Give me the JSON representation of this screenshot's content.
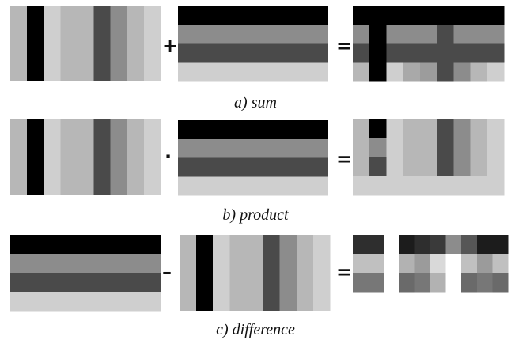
{
  "palette": {
    "white": "#ffffff",
    "black": "#000000",
    "dark_gray": "#4a4a4a",
    "mid_gray": "#8c8c8c",
    "light_gray": "#b7b7b7",
    "pale_gray": "#cfcfcf",
    "sum_mid_a": "#9c9c9c",
    "sum_mid_b": "#a9a9a9",
    "diff_dark_1": "#2e2e2e",
    "diff_dark_2": "#1c1c1c",
    "diff_dark_3": "#3a3a3a",
    "diff_dark_4": "#565656",
    "diff_mid_1": "#777777",
    "diff_mid_2": "#6a6a6a",
    "diff_light_1": "#c0c0c0",
    "diff_light_2": "#d9d9d9",
    "diff_light_3": "#b2b2b2",
    "diff_light_4": "#9b9b9b"
  },
  "stripe_levels": {
    "vertical_columns": [
      "light_gray",
      "black",
      "pale_gray",
      "light_gray",
      "light_gray",
      "dark_gray",
      "mid_gray",
      "light_gray",
      "pale_gray"
    ],
    "horizontal_rows": [
      "black",
      "mid_gray",
      "dark_gray",
      "pale_gray"
    ]
  },
  "rows": [
    {
      "id": "sum",
      "caption": "a) sum",
      "operator": "+",
      "equals": "="
    },
    {
      "id": "product",
      "caption": "b) product",
      "operator": "·",
      "equals": "="
    },
    {
      "id": "difference",
      "caption": "c) difference",
      "operator": "–",
      "equals": "="
    }
  ],
  "results": {
    "sum_cells": [
      [
        "black",
        "black",
        "black",
        "black",
        "black",
        "black",
        "black",
        "black",
        "black"
      ],
      [
        "mid_gray",
        "black",
        "mid_gray",
        "mid_gray",
        "mid_gray",
        "dark_gray",
        "mid_gray",
        "mid_gray",
        "mid_gray"
      ],
      [
        "dark_gray",
        "black",
        "dark_gray",
        "dark_gray",
        "dark_gray",
        "dark_gray",
        "dark_gray",
        "dark_gray",
        "dark_gray"
      ],
      [
        "light_gray",
        "black",
        "pale_gray",
        "sum_mid_b",
        "sum_mid_a",
        "dark_gray",
        "mid_gray",
        "light_gray",
        "pale_gray"
      ]
    ],
    "product_cells": [
      [
        "light_gray",
        "black",
        "pale_gray",
        "light_gray",
        "light_gray",
        "dark_gray",
        "mid_gray",
        "light_gray",
        "pale_gray"
      ],
      [
        "light_gray",
        "mid_gray",
        "pale_gray",
        "light_gray",
        "light_gray",
        "dark_gray",
        "mid_gray",
        "light_gray",
        "pale_gray"
      ],
      [
        "light_gray",
        "dark_gray",
        "pale_gray",
        "light_gray",
        "light_gray",
        "dark_gray",
        "mid_gray",
        "light_gray",
        "pale_gray"
      ],
      [
        "pale_gray",
        "pale_gray",
        "pale_gray",
        "pale_gray",
        "pale_gray",
        "pale_gray",
        "pale_gray",
        "pale_gray",
        "pale_gray"
      ]
    ],
    "difference_cells": [
      [
        "diff_dark_1",
        "diff_dark_1",
        "white",
        "diff_dark_2",
        "diff_dark_1",
        "diff_dark_3",
        "mid_gray",
        "diff_dark_4",
        "diff_dark_2",
        "diff_dark_2"
      ],
      [
        "diff_light_1",
        "diff_light_1",
        "white",
        "diff_light_3",
        "diff_light_4",
        "diff_light_2",
        "white",
        "diff_light_1",
        "diff_light_4",
        "diff_light_1"
      ],
      [
        "diff_mid_1",
        "diff_mid_1",
        "white",
        "diff_mid_2",
        "diff_mid_1",
        "diff_light_3",
        "white",
        "diff_mid_2",
        "diff_mid_1",
        "diff_mid_2"
      ]
    ]
  }
}
